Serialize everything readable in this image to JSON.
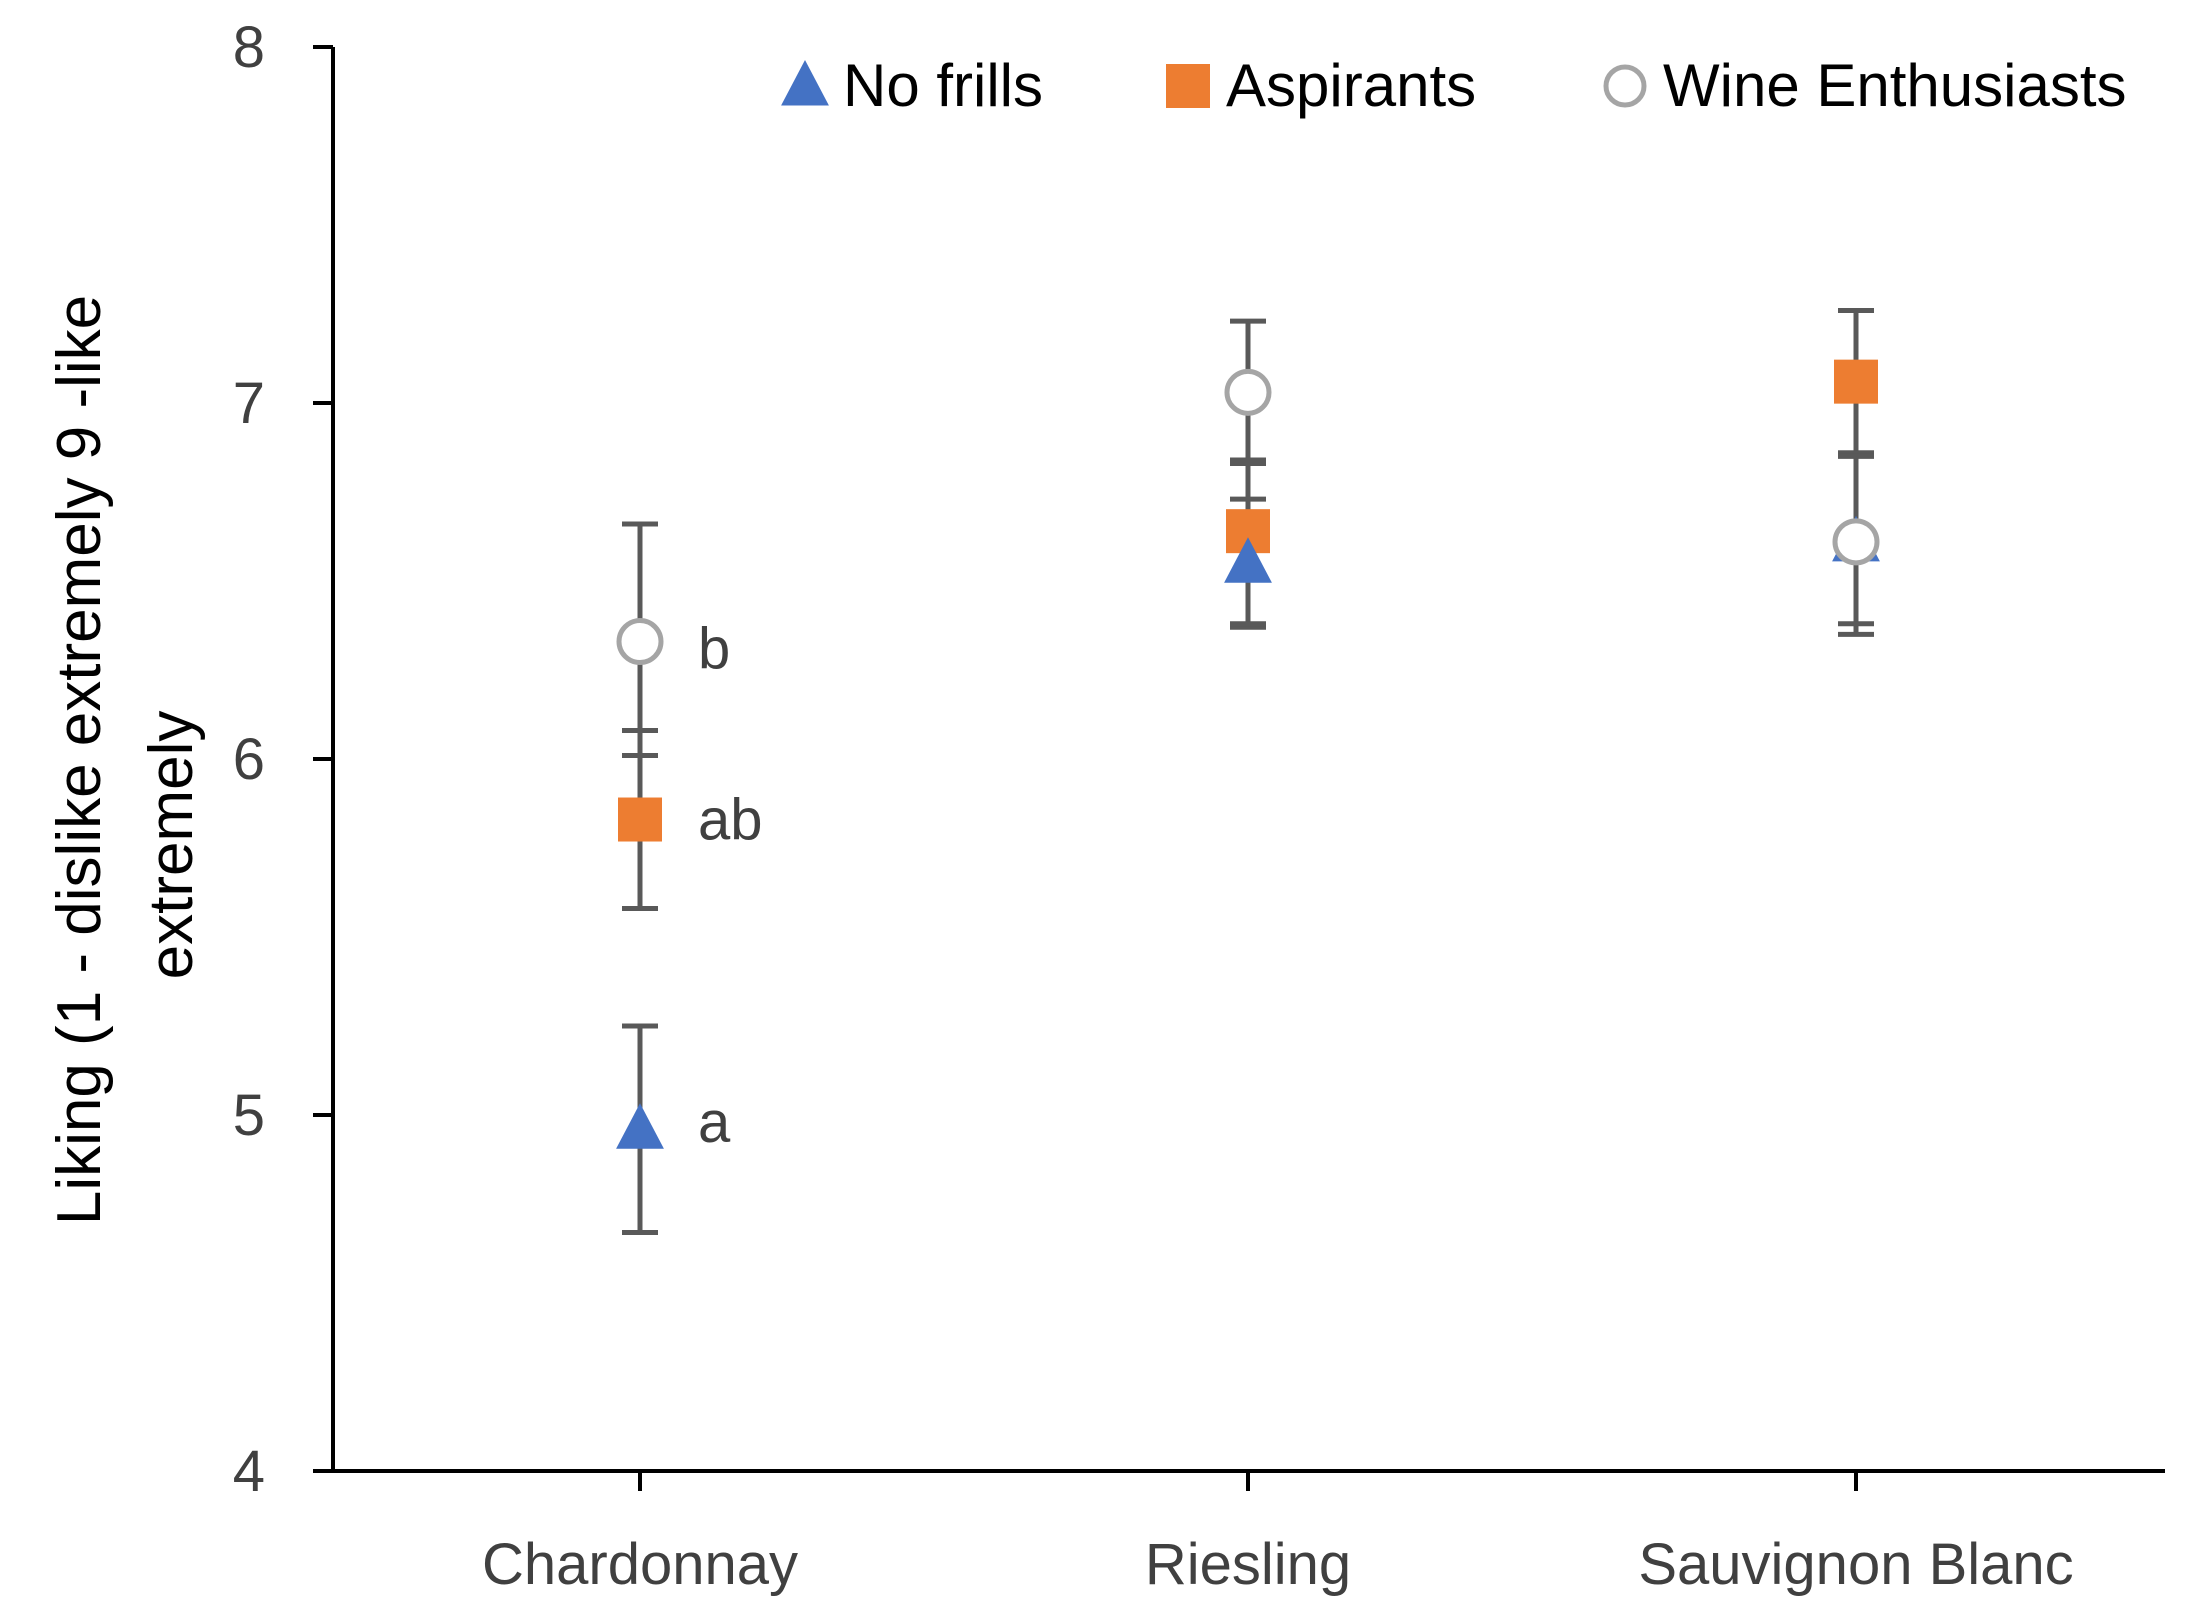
{
  "chart_data": {
    "type": "scatter",
    "title": "",
    "xlabel": "",
    "ylabel": "Liking (1 - dislike extremely 9 -like extremely",
    "ylabel_lines": [
      "Liking (1 - dislike extremely 9 -like",
      "extremely"
    ],
    "categories": [
      "Chardonnay",
      "Riesling",
      "Sauvignon Blanc"
    ],
    "ylim": [
      4,
      8
    ],
    "yticks": [
      4,
      5,
      6,
      7,
      8
    ],
    "ytick_labels": [
      "4",
      "5",
      "6",
      "7",
      "8"
    ],
    "grid": false,
    "legend_position": "top",
    "series": [
      {
        "name": "No frills",
        "marker": "triangle",
        "color": "#4472C4",
        "values": [
          4.96,
          6.55,
          6.61
        ],
        "err_low": [
          4.67,
          6.37,
          6.35
        ],
        "err_high": [
          5.25,
          6.73,
          6.86
        ]
      },
      {
        "name": "Aspirants",
        "marker": "square",
        "color": "#ED7D31",
        "values": [
          5.83,
          6.64,
          7.06
        ],
        "err_low": [
          5.58,
          6.38,
          6.86
        ],
        "err_high": [
          6.08,
          6.84,
          7.26
        ]
      },
      {
        "name": "Wine Enthusiasts",
        "marker": "circle-open",
        "color": "#A5A5A5",
        "values": [
          6.33,
          7.03,
          6.61
        ],
        "err_low": [
          6.01,
          6.83,
          6.38
        ],
        "err_high": [
          6.66,
          7.23,
          6.85
        ]
      }
    ],
    "annotations": [
      {
        "category": "Chardonnay",
        "y": 6.31,
        "text": "b"
      },
      {
        "category": "Chardonnay",
        "y": 5.83,
        "text": "ab"
      },
      {
        "category": "Chardonnay",
        "y": 4.98,
        "text": "a"
      }
    ]
  },
  "colors": {
    "axis": "#000000",
    "errorbar": "#595959",
    "text": "#404040"
  }
}
